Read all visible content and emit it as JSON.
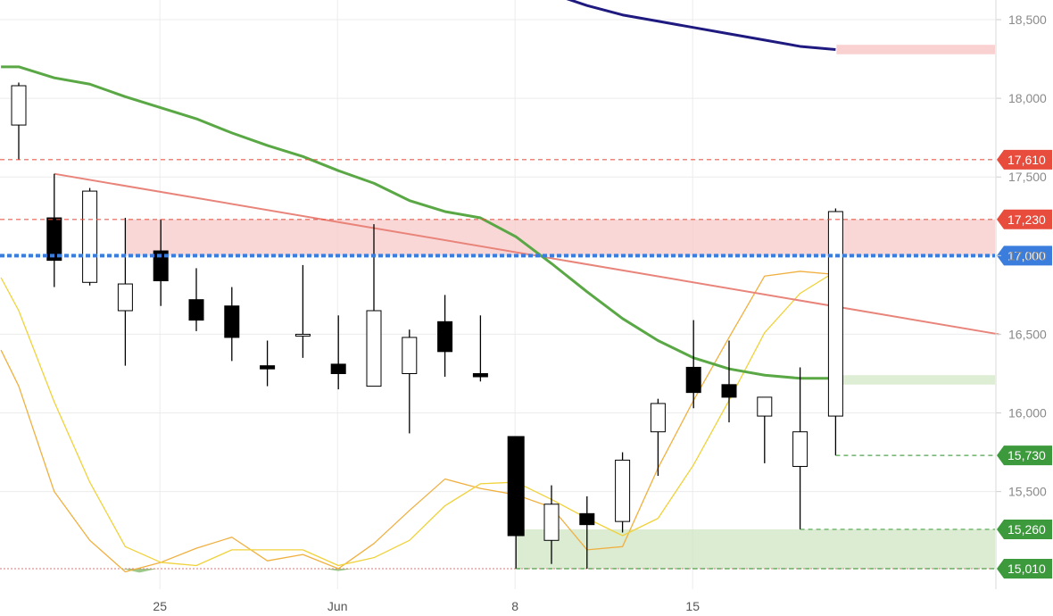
{
  "chart_data": {
    "type": "candlestick",
    "y_axis": {
      "position": "right",
      "ylim": [
        14950,
        18620
      ],
      "ticks": [
        15500,
        16000,
        16500,
        17000,
        17500,
        18000,
        18500
      ],
      "tick_labels": [
        "15,500",
        "16,000",
        "16,500",
        "17,000",
        "17,500",
        "18,000",
        "18,500"
      ]
    },
    "x_axis": {
      "labels": [
        {
          "label": "25",
          "at": 4
        },
        {
          "label": "Jun",
          "at": 9
        },
        {
          "label": "8",
          "at": 14
        },
        {
          "label": "15",
          "at": 19
        }
      ]
    },
    "candles": [
      {
        "o": 17830,
        "h": 18100,
        "l": 17610,
        "c": 18080
      },
      {
        "o": 17240,
        "h": 17520,
        "l": 16800,
        "c": 16970
      },
      {
        "o": 16830,
        "h": 17430,
        "l": 16810,
        "c": 17410
      },
      {
        "o": 16650,
        "h": 17240,
        "l": 16300,
        "c": 16820
      },
      {
        "o": 17030,
        "h": 17230,
        "l": 16680,
        "c": 16840
      },
      {
        "o": 16720,
        "h": 16920,
        "l": 16520,
        "c": 16590
      },
      {
        "o": 16680,
        "h": 16800,
        "l": 16330,
        "c": 16480
      },
      {
        "o": 16300,
        "h": 16460,
        "l": 16170,
        "c": 16280
      },
      {
        "o": 16500,
        "h": 16940,
        "l": 16350,
        "c": 16500
      },
      {
        "o": 16310,
        "h": 16620,
        "l": 16150,
        "c": 16250
      },
      {
        "o": 16170,
        "h": 17200,
        "l": 16170,
        "c": 16650
      },
      {
        "o": 16250,
        "h": 16530,
        "l": 15870,
        "c": 16480
      },
      {
        "o": 16580,
        "h": 16750,
        "l": 16230,
        "c": 16390
      },
      {
        "o": 16250,
        "h": 16620,
        "l": 16200,
        "c": 16230
      },
      {
        "o": 15850,
        "h": 15850,
        "l": 15010,
        "c": 15220
      },
      {
        "o": 15190,
        "h": 15540,
        "l": 15040,
        "c": 15420
      },
      {
        "o": 15360,
        "h": 15470,
        "l": 15010,
        "c": 15290
      },
      {
        "o": 15310,
        "h": 15750,
        "l": 15240,
        "c": 15700
      },
      {
        "o": 15880,
        "h": 16090,
        "l": 15600,
        "c": 16060
      },
      {
        "o": 16290,
        "h": 16590,
        "l": 16030,
        "c": 16130
      },
      {
        "o": 16180,
        "h": 16460,
        "l": 15940,
        "c": 16100
      },
      {
        "o": 15980,
        "h": 16100,
        "l": 15680,
        "c": 16100
      },
      {
        "o": 15660,
        "h": 16290,
        "l": 15260,
        "c": 15880
      },
      {
        "o": 15980,
        "h": 17300,
        "l": 15730,
        "c": 17280
      }
    ],
    "levels": [
      {
        "value": 17610,
        "label": "17,610",
        "color": "#e74c3c",
        "style": "dashed"
      },
      {
        "value": 17230,
        "label": "17,230",
        "color": "#e74c3c",
        "style": "dashed"
      },
      {
        "value": 17000,
        "label": "17,000",
        "color": "#3b7ddd",
        "style": "dotted-thick"
      },
      {
        "value": 15730,
        "label": "15,730",
        "color": "#3c9a3c",
        "style": "dashed"
      },
      {
        "value": 15260,
        "label": "15,260",
        "color": "#3c9a3c",
        "style": "dashed"
      },
      {
        "value": 15010,
        "label": "15,010",
        "color": "#3c9a3c",
        "style": "dashed"
      }
    ],
    "zones": [
      {
        "from_value": 17000,
        "to_value": 17230,
        "color": "#f8c9c9"
      },
      {
        "from_value": 15010,
        "to_value": 15260,
        "color": "#cfe6c4"
      }
    ],
    "moving_average_long": {
      "color": "#1f1a80",
      "points": [
        [
          15.2,
          18650
        ],
        [
          16,
          18590
        ],
        [
          17,
          18530
        ],
        [
          18,
          18490
        ],
        [
          19,
          18450
        ],
        [
          20,
          18410
        ],
        [
          21,
          18370
        ],
        [
          22,
          18330
        ],
        [
          23,
          18310
        ]
      ],
      "end_zone": {
        "from_value": 18280,
        "to_value": 18340,
        "color": "#f8c9c9"
      }
    },
    "moving_average_mid": {
      "color": "#5aa845",
      "points": [
        [
          -0.5,
          18200
        ],
        [
          0,
          18200
        ],
        [
          1,
          18130
        ],
        [
          2,
          18090
        ],
        [
          3,
          18010
        ],
        [
          4,
          17940
        ],
        [
          5,
          17870
        ],
        [
          6,
          17780
        ],
        [
          7,
          17700
        ],
        [
          8,
          17630
        ],
        [
          9,
          17540
        ],
        [
          10,
          17460
        ],
        [
          11,
          17350
        ],
        [
          12,
          17280
        ],
        [
          13,
          17240
        ],
        [
          14,
          17120
        ],
        [
          15,
          16950
        ],
        [
          16,
          16770
        ],
        [
          17,
          16600
        ],
        [
          18,
          16460
        ],
        [
          19,
          16350
        ],
        [
          20,
          16280
        ],
        [
          21,
          16240
        ],
        [
          22,
          16220
        ],
        [
          23,
          16220
        ]
      ],
      "end_zone": {
        "from_value": 16180,
        "to_value": 16240,
        "color": "#d8ebcc"
      }
    },
    "trend_line": {
      "color": "#e8847a",
      "from": [
        1,
        17520
      ],
      "to": [
        27.6,
        16500
      ]
    },
    "oscillator_a": {
      "color": "#f0d23a",
      "points": [
        [
          -0.5,
          16860
        ],
        [
          0,
          16650
        ],
        [
          1,
          16070
        ],
        [
          2,
          15560
        ],
        [
          3,
          15150
        ],
        [
          4,
          15050
        ],
        [
          5,
          15030
        ],
        [
          6,
          15130
        ],
        [
          7,
          15130
        ],
        [
          8,
          15130
        ],
        [
          9,
          15030
        ],
        [
          10,
          15080
        ],
        [
          11,
          15190
        ],
        [
          12,
          15410
        ],
        [
          13,
          15550
        ],
        [
          14,
          15560
        ],
        [
          15,
          15450
        ],
        [
          16,
          15330
        ],
        [
          17,
          15220
        ],
        [
          18,
          15330
        ],
        [
          19,
          15670
        ],
        [
          20,
          16080
        ],
        [
          21,
          16510
        ],
        [
          22,
          16760
        ],
        [
          23,
          16900
        ]
      ]
    },
    "oscillator_b": {
      "color": "#f0b040",
      "points": [
        [
          -0.5,
          16400
        ],
        [
          0,
          16170
        ],
        [
          1,
          15500
        ],
        [
          2,
          15190
        ],
        [
          3,
          14990
        ],
        [
          4,
          15050
        ],
        [
          5,
          15140
        ],
        [
          6,
          15210
        ],
        [
          7,
          15060
        ],
        [
          8,
          15100
        ],
        [
          9,
          15010
        ],
        [
          10,
          15170
        ],
        [
          11,
          15380
        ],
        [
          12,
          15580
        ],
        [
          13,
          15520
        ],
        [
          14,
          15480
        ],
        [
          15,
          15400
        ],
        [
          16,
          15130
        ],
        [
          17,
          15150
        ],
        [
          18,
          15650
        ],
        [
          19,
          16080
        ],
        [
          20,
          16480
        ],
        [
          21,
          16870
        ],
        [
          22,
          16900
        ],
        [
          23,
          16880
        ]
      ]
    },
    "baseline": {
      "value": 15010,
      "color": "#d97a7a"
    }
  }
}
